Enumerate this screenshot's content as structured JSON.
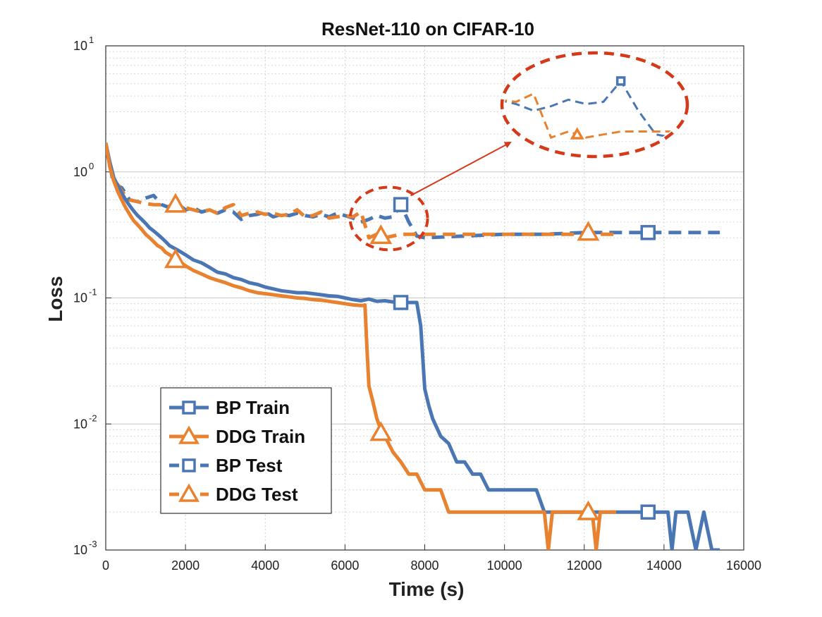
{
  "chart_data": {
    "type": "line",
    "title": "ResNet-110 on CIFAR-10",
    "xlabel": "Time (s)",
    "ylabel": "Loss",
    "xlim": [
      0,
      16000
    ],
    "ylim": [
      0.001,
      10
    ],
    "yscale": "log",
    "grid": true,
    "legend_position": "lower-left",
    "x_ticks": [
      0,
      2000,
      4000,
      6000,
      8000,
      10000,
      12000,
      14000,
      16000
    ],
    "x_tick_labels": [
      "0",
      "2000",
      "4000",
      "6000",
      "8000",
      "10000",
      "12000",
      "14000",
      "16000"
    ],
    "y_ticks": [
      {
        "value": 10,
        "base": "10",
        "exp": "1"
      },
      {
        "value": 1,
        "base": "10",
        "exp": "0"
      },
      {
        "value": 0.1,
        "base": "10",
        "exp": "-1"
      },
      {
        "value": 0.01,
        "base": "10",
        "exp": "-2"
      },
      {
        "value": 0.001,
        "base": "10",
        "exp": "-3"
      }
    ],
    "colors": {
      "bp": "#4a77b4",
      "ddg": "#e8822f",
      "highlight": "#d43a1a"
    },
    "series": [
      {
        "name": "BP Train",
        "color": "#4a77b4",
        "style": "solid",
        "marker": "square",
        "x": [
          0,
          100,
          200,
          300,
          400,
          500,
          600,
          700,
          800,
          900,
          1000,
          1100,
          1200,
          1300,
          1400,
          1500,
          1600,
          1700,
          1800,
          2000,
          2200,
          2400,
          2600,
          2800,
          3000,
          3200,
          3400,
          3600,
          3800,
          4000,
          4200,
          4400,
          4600,
          4800,
          5000,
          5200,
          5400,
          5600,
          5800,
          6000,
          6200,
          6400,
          6600,
          6800,
          7000,
          7200,
          7400,
          7600,
          7800,
          7900,
          8000,
          8100,
          8200,
          8400,
          8600,
          8800,
          9000,
          9200,
          9400,
          9600,
          9800,
          10000,
          10200,
          10400,
          10600,
          10800,
          11000,
          11200,
          11400,
          11600,
          11800,
          12000,
          12200,
          12400,
          12600,
          12800,
          13000,
          13200,
          13400,
          13600,
          13800,
          14000,
          14100,
          14200,
          14300,
          14400,
          14500,
          14600,
          14800,
          15000,
          15200,
          15400
        ],
        "values": [
          1.7,
          1.2,
          0.9,
          0.78,
          0.68,
          0.6,
          0.54,
          0.49,
          0.45,
          0.42,
          0.39,
          0.36,
          0.34,
          0.32,
          0.3,
          0.28,
          0.26,
          0.25,
          0.24,
          0.22,
          0.2,
          0.19,
          0.175,
          0.16,
          0.155,
          0.145,
          0.14,
          0.132,
          0.128,
          0.122,
          0.118,
          0.114,
          0.112,
          0.11,
          0.11,
          0.108,
          0.106,
          0.104,
          0.103,
          0.1,
          0.097,
          0.095,
          0.098,
          0.094,
          0.095,
          0.093,
          0.093,
          0.092,
          0.092,
          0.06,
          0.019,
          0.014,
          0.011,
          0.008,
          0.007,
          0.005,
          0.005,
          0.004,
          0.004,
          0.003,
          0.003,
          0.003,
          0.003,
          0.003,
          0.003,
          0.003,
          0.002,
          0.002,
          0.002,
          0.002,
          0.002,
          0.002,
          0.002,
          0.002,
          0.002,
          0.002,
          0.002,
          0.002,
          0.002,
          0.002,
          0.002,
          0.002,
          0.002,
          0.001,
          0.002,
          0.002,
          0.002,
          0.002,
          0.001,
          0.002,
          0.001,
          0.001
        ],
        "markers": [
          [
            7400,
            0.092
          ],
          [
            13600,
            0.002
          ]
        ]
      },
      {
        "name": "DDG Train",
        "color": "#e8822f",
        "style": "solid",
        "marker": "triangle",
        "x": [
          0,
          100,
          200,
          300,
          400,
          500,
          600,
          700,
          800,
          900,
          1000,
          1100,
          1200,
          1300,
          1400,
          1500,
          1600,
          1700,
          1800,
          2000,
          2200,
          2400,
          2600,
          2800,
          3000,
          3200,
          3400,
          3600,
          3800,
          4000,
          4200,
          4400,
          4600,
          4800,
          5000,
          5200,
          5400,
          5600,
          5800,
          6000,
          6200,
          6400,
          6450,
          6500,
          6550,
          6600,
          6700,
          6800,
          6900,
          7000,
          7200,
          7400,
          7600,
          7800,
          8000,
          8200,
          8400,
          8600,
          8800,
          9000,
          9500,
          10000,
          10500,
          11000,
          11100,
          11200,
          11400,
          11600,
          11800,
          12000,
          12200,
          12300,
          12400,
          12600,
          12800
        ],
        "values": [
          1.7,
          1.1,
          0.85,
          0.7,
          0.6,
          0.52,
          0.46,
          0.41,
          0.38,
          0.35,
          0.32,
          0.3,
          0.28,
          0.26,
          0.25,
          0.23,
          0.22,
          0.21,
          0.2,
          0.18,
          0.165,
          0.155,
          0.145,
          0.138,
          0.132,
          0.125,
          0.12,
          0.114,
          0.11,
          0.108,
          0.106,
          0.104,
          0.102,
          0.1,
          0.099,
          0.097,
          0.096,
          0.094,
          0.092,
          0.09,
          0.088,
          0.087,
          0.087,
          0.088,
          0.04,
          0.02,
          0.015,
          0.011,
          0.009,
          0.008,
          0.006,
          0.005,
          0.004,
          0.004,
          0.003,
          0.003,
          0.003,
          0.002,
          0.002,
          0.002,
          0.002,
          0.002,
          0.002,
          0.002,
          0.001,
          0.002,
          0.002,
          0.002,
          0.002,
          0.002,
          0.002,
          0.001,
          0.002,
          0.002,
          0.002
        ],
        "markers": [
          [
            1750,
            0.2
          ],
          [
            6900,
            0.0085
          ],
          [
            12100,
            0.002
          ]
        ]
      },
      {
        "name": "BP Test",
        "color": "#4a77b4",
        "style": "dashed",
        "marker": "square",
        "x": [
          0,
          200,
          400,
          600,
          800,
          1000,
          1200,
          1400,
          1600,
          1800,
          2000,
          2200,
          2400,
          2600,
          2800,
          3000,
          3200,
          3400,
          3600,
          3800,
          4000,
          4200,
          4400,
          4600,
          4800,
          5000,
          5200,
          5400,
          5600,
          5800,
          6000,
          6200,
          6400,
          6600,
          6800,
          7000,
          7200,
          7400,
          7600,
          7800,
          8000,
          9000,
          10000,
          11000,
          12000,
          13000,
          14000,
          15000,
          15400
        ],
        "values": [
          1.6,
          0.8,
          0.75,
          0.6,
          0.58,
          0.62,
          0.65,
          0.55,
          0.52,
          0.56,
          0.5,
          0.52,
          0.48,
          0.5,
          0.47,
          0.5,
          0.48,
          0.42,
          0.45,
          0.46,
          0.48,
          0.44,
          0.46,
          0.45,
          0.47,
          0.45,
          0.44,
          0.46,
          0.44,
          0.47,
          0.45,
          0.43,
          0.4,
          0.42,
          0.45,
          0.43,
          0.44,
          0.55,
          0.4,
          0.31,
          0.3,
          0.31,
          0.32,
          0.32,
          0.33,
          0.33,
          0.33,
          0.33,
          0.33
        ],
        "markers": [
          [
            7400,
            0.55
          ],
          [
            13600,
            0.33
          ]
        ]
      },
      {
        "name": "DDG Test",
        "color": "#e8822f",
        "style": "dashed",
        "marker": "triangle",
        "x": [
          0,
          200,
          400,
          600,
          800,
          1000,
          1200,
          1400,
          1600,
          1800,
          2000,
          2200,
          2400,
          2600,
          2800,
          3000,
          3200,
          3400,
          3600,
          3800,
          4000,
          4200,
          4400,
          4600,
          4800,
          5000,
          5200,
          5400,
          5600,
          5800,
          6000,
          6200,
          6400,
          6600,
          6800,
          6900,
          7000,
          7200,
          7400,
          7600,
          7800,
          8000,
          9000,
          10000,
          11000,
          12000,
          12800
        ],
        "values": [
          1.6,
          0.9,
          0.7,
          0.6,
          0.58,
          0.56,
          0.55,
          0.55,
          0.53,
          0.55,
          0.52,
          0.5,
          0.48,
          0.5,
          0.47,
          0.52,
          0.55,
          0.45,
          0.47,
          0.48,
          0.46,
          0.47,
          0.45,
          0.46,
          0.5,
          0.44,
          0.45,
          0.48,
          0.43,
          0.44,
          0.45,
          0.44,
          0.48,
          0.3,
          0.32,
          0.31,
          0.3,
          0.31,
          0.32,
          0.32,
          0.32,
          0.32,
          0.32,
          0.32,
          0.32,
          0.32,
          0.32
        ],
        "markers": [
          [
            1750,
            0.55
          ],
          [
            6900,
            0.31
          ],
          [
            12100,
            0.33
          ]
        ]
      }
    ],
    "annotation": {
      "type": "zoom-callout",
      "region_x": [
        6200,
        8000
      ],
      "region_y": [
        0.26,
        0.7
      ]
    }
  },
  "legend": {
    "items": [
      {
        "label": "BP Train",
        "color": "#4a77b4",
        "style": "solid",
        "marker": "square"
      },
      {
        "label": "DDG Train",
        "color": "#e8822f",
        "style": "solid",
        "marker": "triangle"
      },
      {
        "label": "BP Test",
        "color": "#4a77b4",
        "style": "dashed",
        "marker": "square"
      },
      {
        "label": "DDG Test",
        "color": "#e8822f",
        "style": "dashed",
        "marker": "triangle"
      }
    ]
  }
}
